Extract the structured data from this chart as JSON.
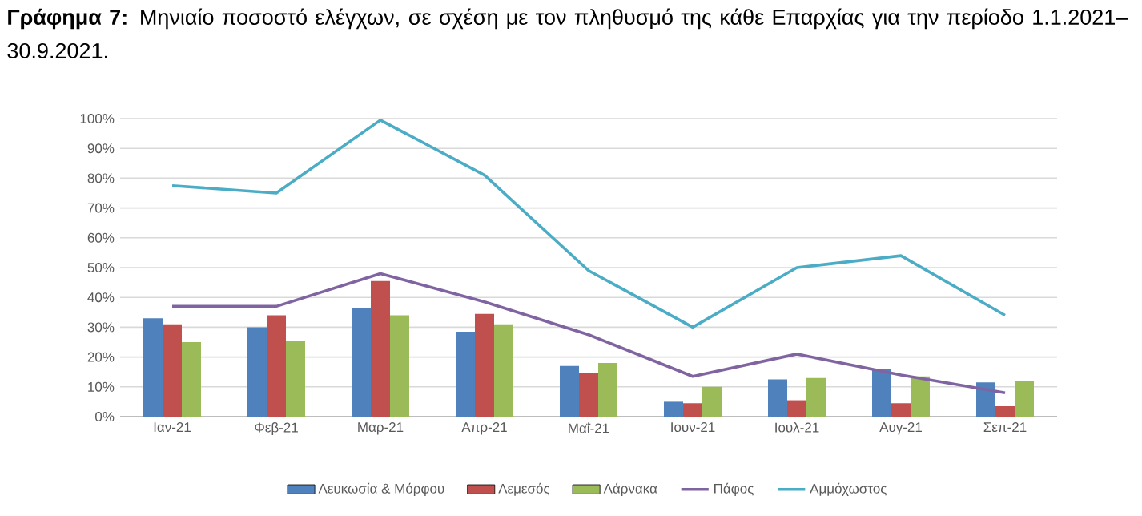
{
  "chart_data": {
    "type": "bar",
    "title": "**Γράφημα 7:** Μηνιαίο ποσοστό ελέγχων, σε σχέση με τον πληθυσμό της κάθε Επαρχίας για την περίοδο 1.1.2021–30.9.2021.",
    "categories": [
      "Ιαν-21",
      "Φεβ-21",
      "Μαρ-21",
      "Απρ-21",
      "Μαΐ-21",
      "Ιουν-21",
      "Ιουλ-21",
      "Αυγ-21",
      "Σεπ-21"
    ],
    "series": [
      {
        "name": "Λευκωσία & Μόρφου",
        "color": "#4f81bd",
        "values": [
          33,
          30,
          36.5,
          28.5,
          17,
          5,
          12.5,
          16,
          11.5
        ]
      },
      {
        "name": "Λεμεσός",
        "color": "#c0504d",
        "values": [
          31,
          34,
          45.5,
          34.5,
          14.5,
          4.5,
          5.5,
          4.5,
          3.5
        ]
      },
      {
        "name": "Λάρνακα",
        "color": "#9bbb59",
        "values": [
          25,
          25.5,
          34,
          31,
          18,
          10,
          13,
          13.5,
          12
        ]
      },
      {
        "name": "Πάφος",
        "color": "#8064a2",
        "type": "line",
        "values": [
          37,
          37,
          48,
          38.5,
          27.5,
          13.5,
          21,
          14,
          8
        ]
      },
      {
        "name": "Αμμόχωστος",
        "color": "#4bacc6",
        "type": "line",
        "values": [
          77.5,
          75,
          99.5,
          81,
          49,
          30,
          50,
          54,
          34
        ]
      }
    ],
    "ylim": [
      0,
      100
    ],
    "yticks": [
      {
        "value": 0,
        "label": "0%"
      },
      {
        "value": 10,
        "label": "10%"
      },
      {
        "value": 20,
        "label": "20%"
      },
      {
        "value": 30,
        "label": "30%"
      },
      {
        "value": 40,
        "label": "40%"
      },
      {
        "value": 50,
        "label": "50%"
      },
      {
        "value": 60,
        "label": "60%"
      },
      {
        "value": 70,
        "label": "70%"
      },
      {
        "value": 80,
        "label": "80%"
      },
      {
        "value": 90,
        "label": "90%"
      },
      {
        "value": 100,
        "label": "100%"
      }
    ],
    "grid": "y",
    "legend": "bottom"
  }
}
